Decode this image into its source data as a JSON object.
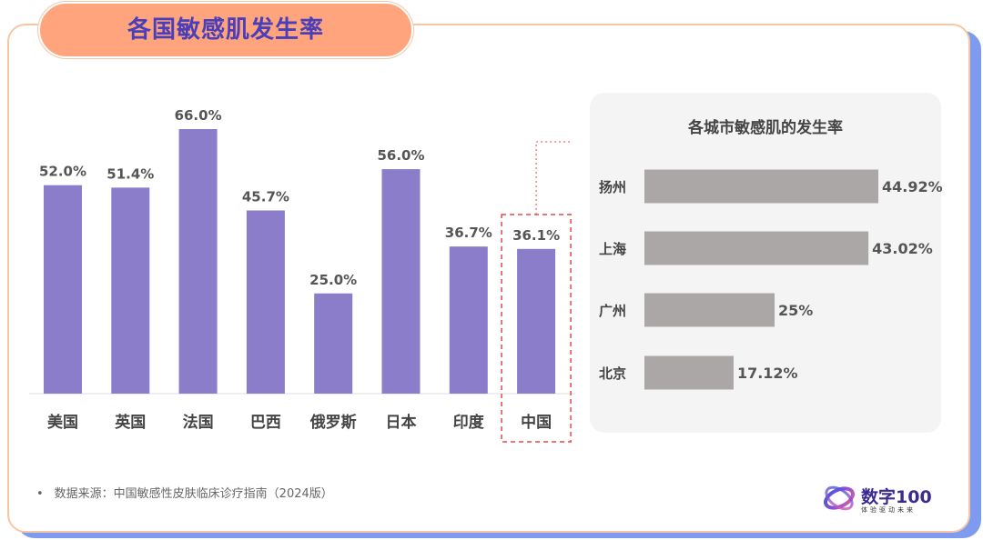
{
  "page": {
    "title": "各国敏感肌发生率",
    "source_bullet": "•",
    "source": "数据来源：中国敏感性皮肤临床诊疗指南（2024版）",
    "logo_text": "数字100",
    "logo_subtitle": "体验驱动未来"
  },
  "chart_data": [
    {
      "type": "bar",
      "orientation": "vertical",
      "title": "",
      "categories": [
        "美国",
        "英国",
        "法国",
        "巴西",
        "俄罗斯",
        "日本",
        "印度",
        "中国"
      ],
      "values": [
        52.0,
        51.4,
        66.0,
        45.7,
        25.0,
        56.0,
        36.7,
        36.1
      ],
      "value_labels": [
        "52.0%",
        "51.4%",
        "66.0%",
        "45.7%",
        "25.0%",
        "56.0%",
        "36.7%",
        "36.1%"
      ],
      "highlight": "中国",
      "ylim": [
        0,
        70
      ],
      "bar_color": "#8b7dc9",
      "grid": false
    },
    {
      "type": "bar",
      "orientation": "horizontal",
      "title": "各城市敏感肌的发生率",
      "categories": [
        "扬州",
        "上海",
        "广州",
        "北京"
      ],
      "values": [
        44.92,
        43.02,
        25,
        17.12
      ],
      "value_labels": [
        "44.92%",
        "43.02%",
        "25%",
        "17.12%"
      ],
      "xlim": [
        0,
        48
      ],
      "bar_color": "#aba7a7",
      "grid": false
    }
  ],
  "colors": {
    "title_pill": "#ffa47c",
    "title_text": "#4a3fb8",
    "highlight_box": "#e04a4a",
    "card_shadow": "#7f9bf0"
  }
}
